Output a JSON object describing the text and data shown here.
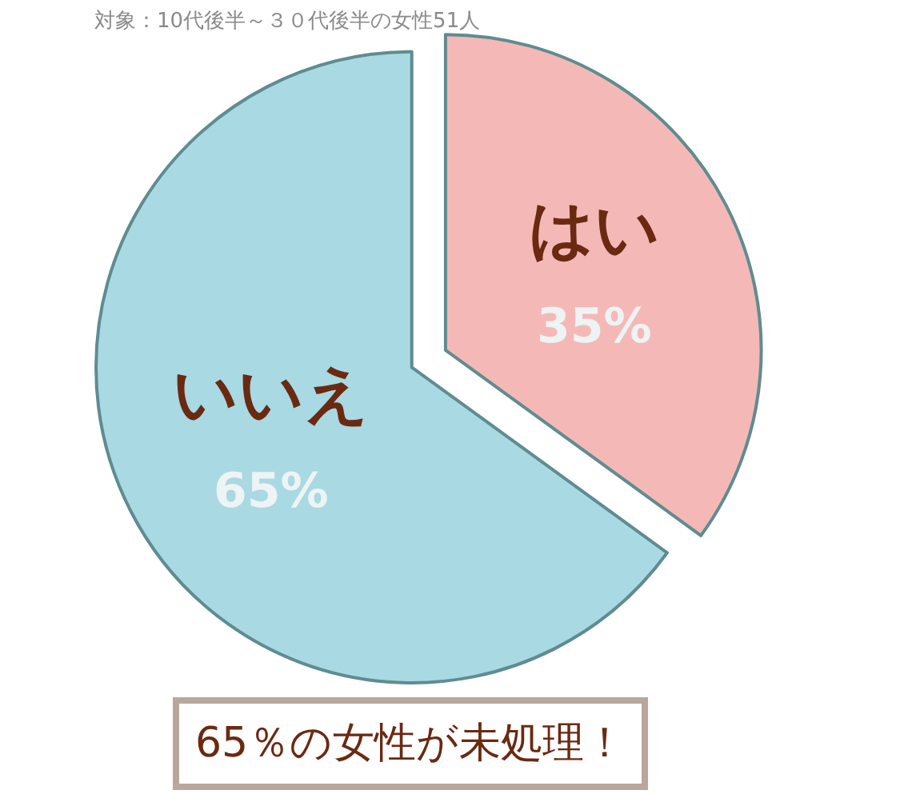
{
  "chart_data": {
    "type": "pie",
    "subtitle": "対象：10代後半～３０代後半の女性51人",
    "categories": [
      "はい",
      "いいえ"
    ],
    "values": [
      35,
      65
    ],
    "colors": [
      "#f4b9b7",
      "#a9d9e3"
    ],
    "value_labels": [
      "35%",
      "65%"
    ],
    "legend": false,
    "annotations": [
      "65％の女性が未処理！"
    ]
  }
}
